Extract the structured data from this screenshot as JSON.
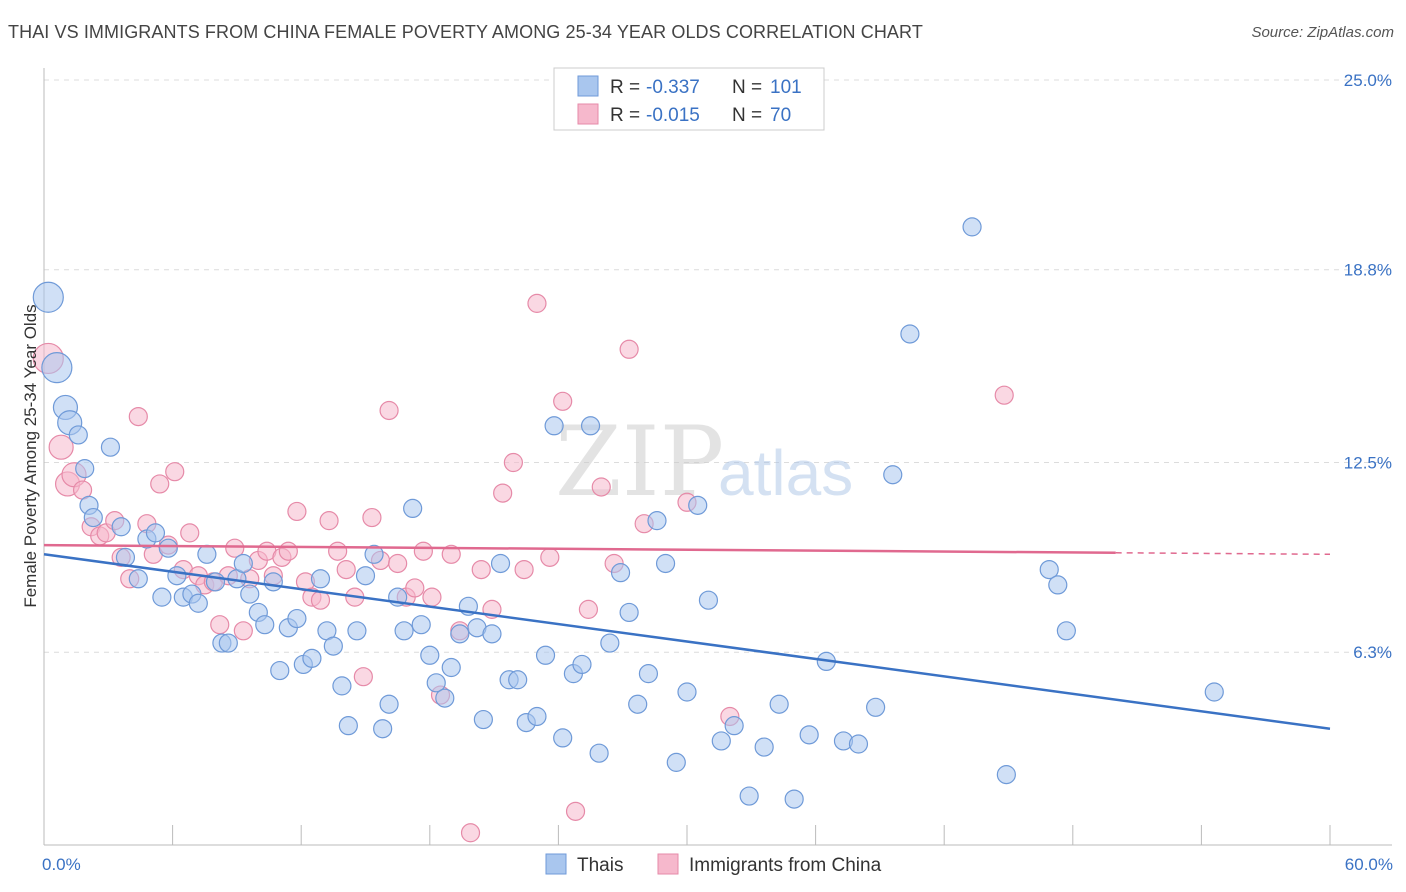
{
  "title": "THAI VS IMMIGRANTS FROM CHINA FEMALE POVERTY AMONG 25-34 YEAR OLDS CORRELATION CHART",
  "source": "Source: ZipAtlas.com",
  "watermark": {
    "zip": "ZIP",
    "atlas": "atlas"
  },
  "colors": {
    "blue": "#3a72c4",
    "blue_fill": "#a9c6ee",
    "pink": "#e0698f",
    "pink_fill": "#f6b8cc"
  },
  "legend": {
    "rows": [
      {
        "r_label": "R =",
        "r_value": "-0.337",
        "n_label": "N =",
        "n_value": "101"
      },
      {
        "r_label": "R =",
        "r_value": "-0.015",
        "n_label": "N =",
        "n_value": "70"
      }
    ]
  },
  "chart_data": {
    "type": "scatter",
    "title": "THAI VS IMMIGRANTS FROM CHINA FEMALE POVERTY AMONG 25-34 YEAR OLDS CORRELATION CHART",
    "xlabel": "",
    "ylabel": "Female Poverty Among 25-34 Year Olds",
    "xlim": [
      0,
      60
    ],
    "ylim": [
      0,
      25
    ],
    "x_tick_labels": [
      "0.0%",
      "60.0%"
    ],
    "y_ticks": [
      6.3,
      12.5,
      18.8,
      25.0
    ],
    "y_tick_labels": [
      "6.3%",
      "12.5%",
      "18.8%",
      "25.0%"
    ],
    "grid": true,
    "legend_position": "top-center",
    "series": [
      {
        "name": "Thais",
        "color": "#3a72c4",
        "trend": {
          "x": [
            0,
            60
          ],
          "y": [
            9.5,
            3.8
          ],
          "dashed_from": null
        },
        "points": [
          [
            0.2,
            17.9
          ],
          [
            0.6,
            15.6
          ],
          [
            1.0,
            14.3
          ],
          [
            1.2,
            13.8
          ],
          [
            1.6,
            13.4
          ],
          [
            1.9,
            12.3
          ],
          [
            2.1,
            11.1
          ],
          [
            2.3,
            10.7
          ],
          [
            3.1,
            13.0
          ],
          [
            3.6,
            10.4
          ],
          [
            3.8,
            9.4
          ],
          [
            4.4,
            8.7
          ],
          [
            4.8,
            10.0
          ],
          [
            5.2,
            10.2
          ],
          [
            5.5,
            8.1
          ],
          [
            5.8,
            9.7
          ],
          [
            6.2,
            8.8
          ],
          [
            6.5,
            8.1
          ],
          [
            6.9,
            8.2
          ],
          [
            7.2,
            7.9
          ],
          [
            7.6,
            9.5
          ],
          [
            8.0,
            8.6
          ],
          [
            8.3,
            6.6
          ],
          [
            8.6,
            6.6
          ],
          [
            9.0,
            8.7
          ],
          [
            9.3,
            9.2
          ],
          [
            9.6,
            8.2
          ],
          [
            10.0,
            7.6
          ],
          [
            10.3,
            7.2
          ],
          [
            10.7,
            8.6
          ],
          [
            11.0,
            5.7
          ],
          [
            11.4,
            7.1
          ],
          [
            11.8,
            7.4
          ],
          [
            12.1,
            5.9
          ],
          [
            12.5,
            6.1
          ],
          [
            12.9,
            8.7
          ],
          [
            13.2,
            7.0
          ],
          [
            13.5,
            6.5
          ],
          [
            13.9,
            5.2
          ],
          [
            14.2,
            3.9
          ],
          [
            14.6,
            7.0
          ],
          [
            15.0,
            8.8
          ],
          [
            15.4,
            9.5
          ],
          [
            15.8,
            3.8
          ],
          [
            16.1,
            4.6
          ],
          [
            16.5,
            8.1
          ],
          [
            16.8,
            7.0
          ],
          [
            17.2,
            11.0
          ],
          [
            17.6,
            7.2
          ],
          [
            18.0,
            6.2
          ],
          [
            18.3,
            5.3
          ],
          [
            18.7,
            4.8
          ],
          [
            19.0,
            5.8
          ],
          [
            19.4,
            6.9
          ],
          [
            19.8,
            7.8
          ],
          [
            20.2,
            7.1
          ],
          [
            20.5,
            4.1
          ],
          [
            20.9,
            6.9
          ],
          [
            21.3,
            9.2
          ],
          [
            21.7,
            5.4
          ],
          [
            22.1,
            5.4
          ],
          [
            22.5,
            4.0
          ],
          [
            23.0,
            4.2
          ],
          [
            23.4,
            6.2
          ],
          [
            23.8,
            13.7
          ],
          [
            24.2,
            3.5
          ],
          [
            24.7,
            5.6
          ],
          [
            25.1,
            5.9
          ],
          [
            25.5,
            13.7
          ],
          [
            25.9,
            3.0
          ],
          [
            26.4,
            6.6
          ],
          [
            26.9,
            8.9
          ],
          [
            27.3,
            7.6
          ],
          [
            27.7,
            4.6
          ],
          [
            28.2,
            5.6
          ],
          [
            28.6,
            10.6
          ],
          [
            29.0,
            9.2
          ],
          [
            29.5,
            2.7
          ],
          [
            30.0,
            5.0
          ],
          [
            30.5,
            11.1
          ],
          [
            31.0,
            8.0
          ],
          [
            31.6,
            3.4
          ],
          [
            32.2,
            3.9
          ],
          [
            32.9,
            1.6
          ],
          [
            33.6,
            3.2
          ],
          [
            34.3,
            4.6
          ],
          [
            35.0,
            1.5
          ],
          [
            35.7,
            3.6
          ],
          [
            36.5,
            6.0
          ],
          [
            37.3,
            3.4
          ],
          [
            38.0,
            3.3
          ],
          [
            38.8,
            4.5
          ],
          [
            39.6,
            12.1
          ],
          [
            40.4,
            16.7
          ],
          [
            43.3,
            20.2
          ],
          [
            44.9,
            2.3
          ],
          [
            46.9,
            9.0
          ],
          [
            47.3,
            8.5
          ],
          [
            47.7,
            7.0
          ],
          [
            54.6,
            5.0
          ]
        ]
      },
      {
        "name": "Immigrants from China",
        "color": "#e0698f",
        "trend": {
          "x": [
            0,
            60
          ],
          "y": [
            9.8,
            9.5
          ],
          "dashed_from": 50
        },
        "points": [
          [
            0.2,
            15.9
          ],
          [
            0.8,
            13.0
          ],
          [
            1.1,
            11.8
          ],
          [
            1.4,
            12.1
          ],
          [
            1.8,
            11.6
          ],
          [
            2.2,
            10.4
          ],
          [
            2.6,
            10.1
          ],
          [
            2.9,
            10.2
          ],
          [
            3.3,
            10.6
          ],
          [
            3.6,
            9.4
          ],
          [
            4.0,
            8.7
          ],
          [
            4.4,
            14.0
          ],
          [
            4.8,
            10.5
          ],
          [
            5.1,
            9.5
          ],
          [
            5.4,
            11.8
          ],
          [
            5.8,
            9.8
          ],
          [
            6.1,
            12.2
          ],
          [
            6.5,
            9.0
          ],
          [
            6.8,
            10.2
          ],
          [
            7.2,
            8.8
          ],
          [
            7.5,
            8.5
          ],
          [
            7.9,
            8.6
          ],
          [
            8.2,
            7.2
          ],
          [
            8.6,
            8.8
          ],
          [
            8.9,
            9.7
          ],
          [
            9.3,
            7.0
          ],
          [
            9.6,
            8.7
          ],
          [
            10.0,
            9.3
          ],
          [
            10.4,
            9.6
          ],
          [
            10.7,
            8.8
          ],
          [
            11.1,
            9.4
          ],
          [
            11.4,
            9.6
          ],
          [
            11.8,
            10.9
          ],
          [
            12.2,
            8.6
          ],
          [
            12.5,
            8.1
          ],
          [
            12.9,
            8.0
          ],
          [
            13.3,
            10.6
          ],
          [
            13.7,
            9.6
          ],
          [
            14.1,
            9.0
          ],
          [
            14.5,
            8.1
          ],
          [
            14.9,
            5.5
          ],
          [
            15.3,
            10.7
          ],
          [
            15.7,
            9.3
          ],
          [
            16.1,
            14.2
          ],
          [
            16.5,
            9.2
          ],
          [
            16.9,
            8.1
          ],
          [
            17.3,
            8.4
          ],
          [
            17.7,
            9.6
          ],
          [
            18.1,
            8.1
          ],
          [
            18.5,
            4.9
          ],
          [
            19.0,
            9.5
          ],
          [
            19.4,
            7.0
          ],
          [
            19.9,
            0.4
          ],
          [
            20.4,
            9.0
          ],
          [
            20.9,
            7.7
          ],
          [
            21.4,
            11.5
          ],
          [
            21.9,
            12.5
          ],
          [
            22.4,
            9.0
          ],
          [
            23.0,
            17.7
          ],
          [
            23.6,
            9.4
          ],
          [
            24.2,
            14.5
          ],
          [
            24.8,
            1.1
          ],
          [
            25.4,
            7.7
          ],
          [
            26.0,
            11.7
          ],
          [
            26.6,
            9.2
          ],
          [
            27.3,
            16.2
          ],
          [
            28.0,
            10.5
          ],
          [
            30.0,
            11.2
          ],
          [
            32.0,
            4.2
          ],
          [
            44.8,
            14.7
          ]
        ]
      }
    ]
  },
  "bottom_legend": [
    {
      "label": "Thais"
    },
    {
      "label": "Immigrants from China"
    }
  ]
}
